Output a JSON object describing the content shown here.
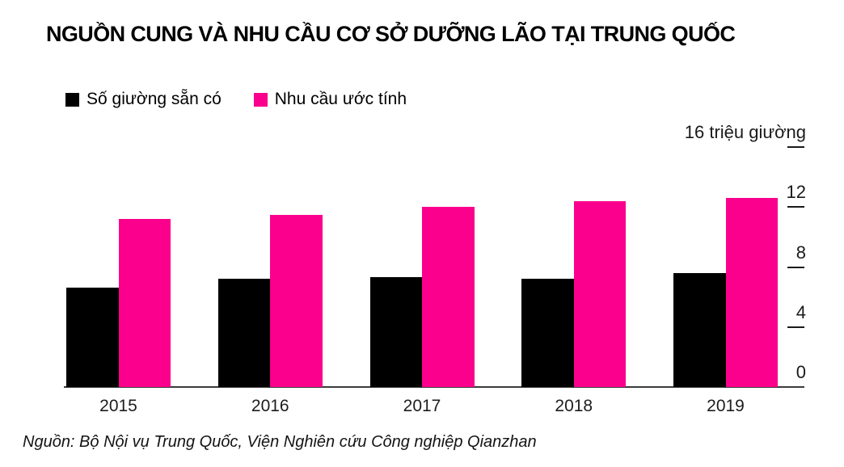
{
  "page": {
    "background_color": "#ffffff"
  },
  "footer": {
    "source": "Nguồn: Bộ Nội vụ Trung Quốc, Viện Nghiên cứu Công nghiệp Qianzhan"
  },
  "chart_data": {
    "type": "bar",
    "title": "NGUỒN CUNG VÀ NHU CẦU CƠ SỞ DƯỠNG LÃO TẠI TRUNG QUỐC",
    "categories": [
      "2015",
      "2016",
      "2017",
      "2018",
      "2019"
    ],
    "series": [
      {
        "name": "Số giường sẵn có",
        "color": "#000000",
        "values": [
          6.6,
          7.2,
          7.3,
          7.2,
          7.6
        ]
      },
      {
        "name": "Nhu cầu ước tính",
        "color": "#fa008c",
        "values": [
          11.2,
          11.5,
          12.0,
          12.4,
          12.6
        ]
      }
    ],
    "axis_top_label": "16 triệu giường",
    "yticks": [
      0,
      4,
      8,
      12
    ],
    "ylim": [
      0,
      16
    ],
    "grid": false,
    "legend_position": "top-left",
    "tick_side": "right"
  }
}
